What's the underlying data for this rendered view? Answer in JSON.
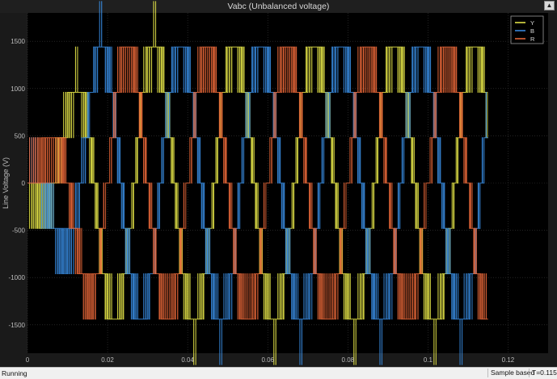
{
  "window": {
    "title": "Vabc (Unbalanced voltage)",
    "status": "Running",
    "sample_mode": "Sample based",
    "sim_time": "T=0.115"
  },
  "icons": {
    "dock": "dock-arrow-icon"
  },
  "colors": {
    "background": "#000000",
    "grid": "#3a3a3a",
    "axis_text": "#bdbdbd",
    "Y": "#eded4a",
    "B": "#3a8fe8",
    "R": "#ee6a3a"
  },
  "chart_data": {
    "type": "line",
    "title": "Vabc (Unbalanced voltage)",
    "xlabel": "",
    "ylabel": "Line Voltage (V)",
    "xlim": [
      0,
      0.13
    ],
    "ylim": [
      -1800,
      1800
    ],
    "xticks": [
      0,
      0.02,
      0.04,
      0.06,
      0.08,
      0.1,
      0.12
    ],
    "xtick_labels": [
      "0",
      "0.02",
      "0.04",
      "0.06",
      "0.08",
      "0.1",
      "0.12"
    ],
    "yticks": [
      -1500,
      -1000,
      -500,
      0,
      500,
      1000,
      1500
    ],
    "ytick_labels": [
      "-1500",
      "-1000",
      "-500",
      "0",
      "500",
      "1000",
      "1500"
    ],
    "grid": true,
    "legend": "top-right",
    "t_end": 0.115,
    "fundamental_hz": 50,
    "switching_hz": 2000,
    "series": [
      {
        "name": "Y",
        "amplitude": 1450,
        "phase_deg": -120,
        "level_step": 480
      },
      {
        "name": "B",
        "amplitude": 1450,
        "phase_deg": 120,
        "level_step": 480
      },
      {
        "name": "R",
        "amplitude": 1400,
        "phase_deg": 0,
        "level_step": 480
      }
    ]
  }
}
